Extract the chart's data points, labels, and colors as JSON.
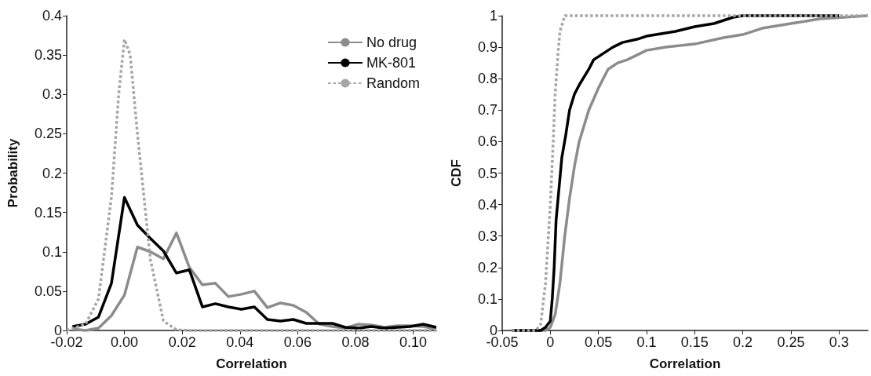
{
  "chart_data": [
    {
      "type": "line",
      "xlabel": "Correlation",
      "ylabel": "Probability",
      "xlim": [
        -0.02,
        0.108
      ],
      "xticks": [
        {
          "value": -0.02,
          "label": "-0.02"
        },
        {
          "value": 0,
          "label": "0.00"
        },
        {
          "value": 0.02,
          "label": "0.02"
        },
        {
          "value": 0.04,
          "label": "0.04"
        },
        {
          "value": 0.06,
          "label": "0.06"
        },
        {
          "value": 0.08,
          "label": "0.08"
        },
        {
          "value": 0.1,
          "label": "0.10"
        }
      ],
      "ylim": [
        0,
        0.4
      ],
      "yticks": [
        0,
        0.05,
        0.1,
        0.15,
        0.2,
        0.25,
        0.3,
        0.35,
        0.4
      ],
      "grid": false,
      "legend": "top right",
      "marker": "none",
      "series": [
        {
          "name": "No drug",
          "color": "#8c8c8c",
          "line_style": "solid",
          "x": [
            -0.018,
            -0.0135,
            -0.009,
            -0.0045,
            0,
            0.0045,
            0.009,
            0.0135,
            0.018,
            0.0225,
            0.027,
            0.0315,
            0.036,
            0.0405,
            0.045,
            0.0495,
            0.054,
            0.0585,
            0.063,
            0.0675,
            0.072,
            0.0765,
            0.081,
            0.0855,
            0.09,
            0.0945,
            0.099,
            0.1035,
            0.108
          ],
          "values": [
            0.002,
            0,
            0.003,
            0.019,
            0.045,
            0.106,
            0.1,
            0.091,
            0.124,
            0.08,
            0.058,
            0.06,
            0.043,
            0.046,
            0.05,
            0.029,
            0.035,
            0.032,
            0.023,
            0.008,
            0.005,
            0.003,
            0.008,
            0.007,
            0.004,
            0.006,
            0.006,
            0.005,
            0.002
          ]
        },
        {
          "name": "MK-801",
          "color": "#000000",
          "line_style": "solid",
          "x": [
            -0.018,
            -0.0135,
            -0.009,
            -0.0045,
            0,
            0.0045,
            0.009,
            0.0135,
            0.018,
            0.0225,
            0.027,
            0.0315,
            0.036,
            0.0405,
            0.045,
            0.0495,
            0.054,
            0.0585,
            0.063,
            0.0675,
            0.072,
            0.0765,
            0.081,
            0.0855,
            0.09,
            0.0945,
            0.099,
            0.1035,
            0.108
          ],
          "values": [
            0.005,
            0.008,
            0.017,
            0.06,
            0.169,
            0.134,
            0.117,
            0.101,
            0.073,
            0.077,
            0.03,
            0.034,
            0.03,
            0.027,
            0.03,
            0.014,
            0.012,
            0.014,
            0.009,
            0.009,
            0.009,
            0.004,
            0.003,
            0.005,
            0.003,
            0.004,
            0.005,
            0.008,
            0.004
          ]
        },
        {
          "name": "Random",
          "color": "#a6a6a6",
          "line_style": "dotted",
          "x": [
            -0.02,
            -0.0135,
            -0.009,
            -0.0045,
            -0.002,
            0,
            0.002,
            0.0045,
            0.009,
            0.0135,
            0.018,
            0.0225,
            0.04,
            0.06,
            0.08,
            0.1,
            0.108
          ],
          "values": [
            0,
            0.008,
            0.04,
            0.17,
            0.3,
            0.37,
            0.35,
            0.25,
            0.09,
            0.012,
            0.001,
            0,
            0,
            0,
            0,
            0,
            0
          ]
        }
      ]
    },
    {
      "type": "line",
      "xlabel": "Correlation",
      "ylabel": "CDF",
      "xlim": [
        -0.05,
        0.33
      ],
      "xticks": [
        -0.05,
        0,
        0.05,
        0.1,
        0.15,
        0.2,
        0.25,
        0.3
      ],
      "ylim": [
        0,
        1
      ],
      "yticks": [
        0,
        0.1,
        0.2,
        0.3,
        0.4,
        0.5,
        0.6,
        0.7,
        0.8,
        0.9,
        1
      ],
      "grid": false,
      "legend": false,
      "marker": "none",
      "series": [
        {
          "color": "#8c8c8c",
          "line_style": "solid",
          "x": [
            -0.04,
            -0.005,
            0,
            0.005,
            0.01,
            0.015,
            0.02,
            0.025,
            0.03,
            0.04,
            0.05,
            0.06,
            0.07,
            0.08,
            0.09,
            0.1,
            0.12,
            0.15,
            0.18,
            0.2,
            0.22,
            0.25,
            0.28,
            0.33
          ],
          "values": [
            0,
            0,
            0.01,
            0.05,
            0.15,
            0.3,
            0.42,
            0.52,
            0.6,
            0.7,
            0.77,
            0.83,
            0.85,
            0.86,
            0.875,
            0.89,
            0.9,
            0.91,
            0.93,
            0.94,
            0.96,
            0.975,
            0.99,
            1
          ]
        },
        {
          "color": "#000000",
          "line_style": "solid",
          "x": [
            -0.04,
            -0.01,
            -0.005,
            0,
            0.002,
            0.004,
            0.006,
            0.009,
            0.012,
            0.016,
            0.02,
            0.025,
            0.03,
            0.04,
            0.045,
            0.055,
            0.065,
            0.075,
            0.09,
            0.1,
            0.11,
            0.13,
            0.15,
            0.17,
            0.19,
            0.2,
            0.3
          ],
          "values": [
            0,
            0,
            0.01,
            0.03,
            0.1,
            0.2,
            0.35,
            0.45,
            0.55,
            0.62,
            0.7,
            0.75,
            0.78,
            0.83,
            0.86,
            0.88,
            0.9,
            0.915,
            0.925,
            0.935,
            0.94,
            0.95,
            0.965,
            0.975,
            0.995,
            1,
            1
          ]
        },
        {
          "color": "#a6a6a6",
          "line_style": "dotted",
          "x": [
            -0.04,
            -0.015,
            -0.01,
            -0.005,
            0,
            0.003,
            0.005,
            0.008,
            0.01,
            0.015,
            0.33
          ],
          "values": [
            0,
            0,
            0.02,
            0.15,
            0.4,
            0.6,
            0.75,
            0.88,
            0.95,
            1,
            1
          ]
        }
      ]
    }
  ]
}
